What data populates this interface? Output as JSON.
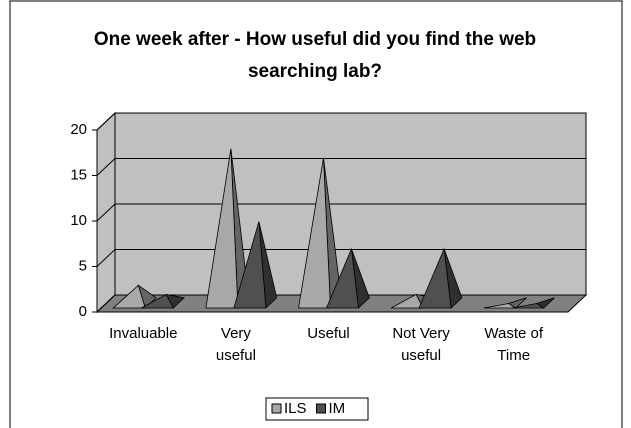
{
  "chart_data": {
    "type": "pyramid3d",
    "title": [
      "One week after - How useful did you find the web",
      "searching lab?"
    ],
    "categories": [
      [
        "Invaluable"
      ],
      [
        "Very",
        "useful"
      ],
      [
        "Useful"
      ],
      [
        "Not Very",
        "useful"
      ],
      [
        "Waste of",
        "Time"
      ]
    ],
    "series": [
      {
        "name": "ILS",
        "color": "#a8a8a8",
        "values": [
          2,
          17,
          16,
          1,
          0
        ]
      },
      {
        "name": "IM",
        "color": "#505050",
        "values": [
          1,
          9,
          6,
          6,
          0
        ]
      }
    ],
    "ylim": [
      0,
      20
    ],
    "yticks": [
      0,
      5,
      10,
      15,
      20
    ],
    "grid": true
  }
}
